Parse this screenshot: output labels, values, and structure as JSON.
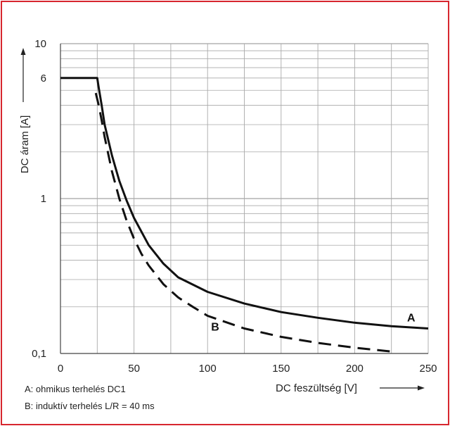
{
  "chart_data": {
    "type": "line",
    "xlabel": "DC feszültség [V]",
    "ylabel": "DC áram [A]",
    "xlim": [
      0,
      250
    ],
    "ylim": [
      0.1,
      10
    ],
    "y_scale": "log",
    "grid": true,
    "x_ticks": [
      "0",
      "50",
      "100",
      "150",
      "200",
      "250"
    ],
    "y_ticks": [
      {
        "value": 10,
        "label": "10"
      },
      {
        "value": 6,
        "label": "6"
      },
      {
        "value": 1,
        "label": "1"
      },
      {
        "value": 0.1,
        "label": "0,1"
      }
    ],
    "series": [
      {
        "name": "A",
        "style": "solid",
        "points": [
          [
            0,
            6
          ],
          [
            25,
            6
          ],
          [
            26,
            5.2
          ],
          [
            28,
            4.0
          ],
          [
            30,
            3.0
          ],
          [
            35,
            1.9
          ],
          [
            40,
            1.3
          ],
          [
            45,
            0.97
          ],
          [
            50,
            0.75
          ],
          [
            60,
            0.5
          ],
          [
            70,
            0.38
          ],
          [
            80,
            0.31
          ],
          [
            100,
            0.25
          ],
          [
            125,
            0.21
          ],
          [
            150,
            0.185
          ],
          [
            175,
            0.17
          ],
          [
            200,
            0.158
          ],
          [
            225,
            0.15
          ],
          [
            250,
            0.145
          ]
        ]
      },
      {
        "name": "B",
        "style": "dashed",
        "points": [
          [
            24,
            4.8
          ],
          [
            26,
            4.0
          ],
          [
            28,
            3.2
          ],
          [
            30,
            2.5
          ],
          [
            35,
            1.5
          ],
          [
            40,
            1.0
          ],
          [
            45,
            0.72
          ],
          [
            50,
            0.55
          ],
          [
            55,
            0.44
          ],
          [
            60,
            0.37
          ],
          [
            70,
            0.28
          ],
          [
            80,
            0.23
          ],
          [
            90,
            0.2
          ],
          [
            100,
            0.175
          ],
          [
            125,
            0.145
          ],
          [
            150,
            0.128
          ],
          [
            175,
            0.117
          ],
          [
            200,
            0.109
          ],
          [
            225,
            0.103
          ]
        ]
      }
    ],
    "notes": [
      "A: ohmikus terhelés DC1",
      "B: induktív terhelés L/R = 40 ms"
    ],
    "colors": {
      "curve": "#111111",
      "grid": "#a9a9a9",
      "frame": "#d7262e",
      "text": "#222222"
    }
  }
}
